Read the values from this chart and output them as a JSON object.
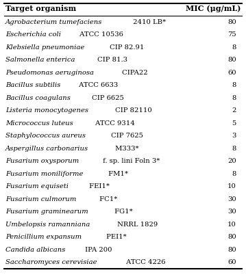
{
  "header_col1": "Target organism",
  "header_col2": "MIC (μg/mL)",
  "rows": [
    {
      "italic_part": "Agrobacterium tumefaciens",
      "rest": " 2410 LB*",
      "mic": "80"
    },
    {
      "italic_part": "Escherichia coli",
      "rest": " ATCC 10536",
      "mic": "75"
    },
    {
      "italic_part": "Klebsiella pneumoniae",
      "rest": " CIP 82.91",
      "mic": "8"
    },
    {
      "italic_part": "Salmonella enterica",
      "rest": " CIP 81.3",
      "mic": "80"
    },
    {
      "italic_part": "Pseudomonas aeruginosa",
      "rest": " CIPA22",
      "mic": "60"
    },
    {
      "italic_part": "Bacillus subtilis",
      "rest": " ATCC 6633",
      "mic": "8"
    },
    {
      "italic_part": "Bacillus coagulans",
      "rest": " CIP 6625",
      "mic": "8"
    },
    {
      "italic_part": "Listeria monocytogenes",
      "rest": " CIP 82110",
      "mic": "2"
    },
    {
      "italic_part": "Micrococcus luteus",
      "rest": " ATCC 9314",
      "mic": "5"
    },
    {
      "italic_part": "Staphylococcus aureus",
      "rest": " CIP 7625",
      "mic": "3"
    },
    {
      "italic_part": "Aspergillus carbonarius",
      "rest": " M333*",
      "mic": "8"
    },
    {
      "italic_part": "Fusarium oxysporum",
      "rest": " f. sp. lini Foln 3*",
      "mic": "20"
    },
    {
      "italic_part": "Fusarium moniliforme",
      "rest": " FM1*",
      "mic": "8"
    },
    {
      "italic_part": "Fusarium equiseti",
      "rest": " FEI1*",
      "mic": "10"
    },
    {
      "italic_part": "Fusarium culmorum",
      "rest": " FC1*",
      "mic": "30"
    },
    {
      "italic_part": "Fusarium graminearum",
      "rest": " FG1*",
      "mic": "30"
    },
    {
      "italic_part": "Umbelopsis ramanniana",
      "rest": " NRRL 1829",
      "mic": "10"
    },
    {
      "italic_part": "Penicillium expansum",
      "rest": " PEI1*",
      "mic": "80"
    },
    {
      "italic_part": "Candida albicans",
      "rest": " IPA 200",
      "mic": "80"
    },
    {
      "italic_part": "Saccharomyces cerevisiae",
      "rest": " ATCC 4226",
      "mic": "60"
    }
  ],
  "bg_color": "#ffffff",
  "text_color": "#000000",
  "font_size": 7.2,
  "header_font_size": 8.0
}
